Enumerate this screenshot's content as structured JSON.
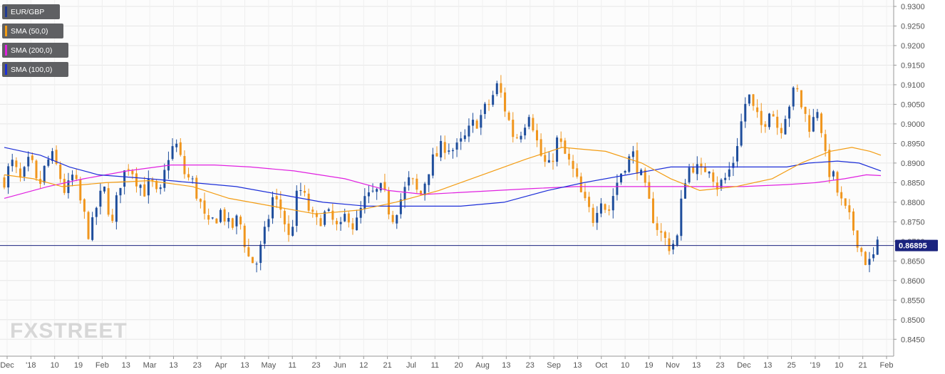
{
  "chart_data": {
    "type": "candlestick",
    "symbol": "EUR/GBP",
    "ylim": [
      0.8425,
      0.93
    ],
    "y_ticks": [
      "0.9300",
      "0.9250",
      "0.9200",
      "0.9150",
      "0.9100",
      "0.9050",
      "0.9000",
      "0.8950",
      "0.8900",
      "0.8850",
      "0.8800",
      "0.8750",
      "0.8700",
      "0.8650",
      "0.8600",
      "0.8550",
      "0.8500",
      "0.8450"
    ],
    "x_labels": [
      "Dec",
      "'18",
      "10",
      "19",
      "Feb",
      "13",
      "Mar",
      "13",
      "23",
      "Apr",
      "13",
      "May",
      "11",
      "23",
      "Jun",
      "12",
      "21",
      "Jul",
      "11",
      "20",
      "Aug",
      "13",
      "23",
      "Sep",
      "13",
      "Oct",
      "10",
      "19",
      "Nov",
      "13",
      "23",
      "Dec",
      "13",
      "25",
      "'19",
      "10",
      "21",
      "Feb"
    ],
    "last_price": 0.86895,
    "last_price_label": "0.86895",
    "legend": [
      {
        "label": "EUR/GBP",
        "color": "#1f3a93"
      },
      {
        "label": "SMA (50,0)",
        "color": "#f39c12"
      },
      {
        "label": "SMA (200,0)",
        "color": "#e020e0"
      },
      {
        "label": "SMA (100,0)",
        "color": "#1c2ed8"
      }
    ],
    "colors": {
      "up": "#1f4e9c",
      "down": "#f0961e",
      "sma50": "#f39c12",
      "sma200": "#e020e0",
      "sma100": "#1c2ed8",
      "price_line": "#1a237e"
    },
    "close_path": [
      [
        0.886,
        0
      ],
      [
        0.89,
        8
      ],
      [
        0.885,
        18
      ],
      [
        0.891,
        28
      ],
      [
        0.883,
        36
      ],
      [
        0.889,
        44
      ],
      [
        0.892,
        50
      ],
      [
        0.888,
        58
      ],
      [
        0.882,
        66
      ],
      [
        0.887,
        74
      ],
      [
        0.878,
        84
      ],
      [
        0.871,
        92
      ],
      [
        0.88,
        100
      ],
      [
        0.883,
        108
      ],
      [
        0.874,
        116
      ],
      [
        0.885,
        124
      ],
      [
        0.89,
        134
      ],
      [
        0.886,
        142
      ],
      [
        0.883,
        150
      ],
      [
        0.885,
        158
      ],
      [
        0.88,
        166
      ],
      [
        0.892,
        176
      ],
      [
        0.895,
        184
      ],
      [
        0.887,
        194
      ],
      [
        0.885,
        202
      ],
      [
        0.88,
        210
      ],
      [
        0.873,
        218
      ],
      [
        0.876,
        226
      ],
      [
        0.878,
        234
      ],
      [
        0.873,
        242
      ],
      [
        0.876,
        252
      ],
      [
        0.866,
        262
      ],
      [
        0.864,
        270
      ],
      [
        0.87,
        278
      ],
      [
        0.881,
        288
      ],
      [
        0.878,
        298
      ],
      [
        0.87,
        306
      ],
      [
        0.884,
        316
      ],
      [
        0.88,
        324
      ],
      [
        0.874,
        334
      ],
      [
        0.877,
        342
      ],
      [
        0.876,
        350
      ],
      [
        0.872,
        360
      ],
      [
        0.878,
        368
      ],
      [
        0.873,
        376
      ],
      [
        0.88,
        386
      ],
      [
        0.882,
        396
      ],
      [
        0.883,
        406
      ],
      [
        0.876,
        416
      ],
      [
        0.881,
        426
      ],
      [
        0.886,
        436
      ],
      [
        0.881,
        446
      ],
      [
        0.889,
        456
      ],
      [
        0.892,
        464
      ],
      [
        0.895,
        474
      ],
      [
        0.893,
        484
      ],
      [
        0.896,
        494
      ],
      [
        0.9,
        504
      ],
      [
        0.902,
        512
      ],
      [
        0.905,
        520
      ],
      [
        0.91,
        530
      ],
      [
        0.902,
        540
      ],
      [
        0.896,
        548
      ],
      [
        0.899,
        556
      ],
      [
        0.904,
        564
      ],
      [
        0.893,
        574
      ],
      [
        0.888,
        584
      ],
      [
        0.896,
        594
      ],
      [
        0.892,
        602
      ],
      [
        0.887,
        612
      ],
      [
        0.88,
        622
      ],
      [
        0.876,
        632
      ],
      [
        0.882,
        640
      ],
      [
        0.877,
        648
      ],
      [
        0.884,
        656
      ],
      [
        0.89,
        666
      ],
      [
        0.892,
        676
      ],
      [
        0.886,
        684
      ],
      [
        0.878,
        694
      ],
      [
        0.872,
        704
      ],
      [
        0.869,
        714
      ],
      [
        0.87,
        722
      ],
      [
        0.886,
        730
      ],
      [
        0.89,
        738
      ],
      [
        0.887,
        748
      ],
      [
        0.89,
        756
      ],
      [
        0.884,
        766
      ],
      [
        0.886,
        774
      ],
      [
        0.89,
        782
      ],
      [
        0.899,
        790
      ],
      [
        0.908,
        798
      ],
      [
        0.902,
        806
      ],
      [
        0.899,
        814
      ],
      [
        0.905,
        822
      ],
      [
        0.898,
        832
      ],
      [
        0.904,
        840
      ],
      [
        0.909,
        850
      ],
      [
        0.903,
        858
      ],
      [
        0.899,
        866
      ],
      [
        0.905,
        874
      ],
      [
        0.89,
        882
      ],
      [
        0.886,
        890
      ],
      [
        0.88,
        898
      ],
      [
        0.876,
        906
      ],
      [
        0.872,
        914
      ],
      [
        0.866,
        922
      ],
      [
        0.864,
        930
      ],
      [
        0.869,
        938
      ]
    ],
    "sma50_path": [
      [
        0.887,
        0
      ],
      [
        0.886,
        40
      ],
      [
        0.884,
        80
      ],
      [
        0.885,
        140
      ],
      [
        0.8855,
        200
      ],
      [
        0.884,
        260
      ],
      [
        0.881,
        310
      ],
      [
        0.879,
        370
      ],
      [
        0.877,
        430
      ],
      [
        0.878,
        490
      ],
      [
        0.88,
        540
      ],
      [
        0.883,
        600
      ],
      [
        0.887,
        660
      ],
      [
        0.891,
        720
      ],
      [
        0.894,
        770
      ],
      [
        0.893,
        830
      ],
      [
        0.89,
        880
      ],
      [
        0.886,
        920
      ],
      [
        0.883,
        960
      ],
      [
        0.884,
        1010
      ],
      [
        0.886,
        1060
      ],
      [
        0.89,
        1100
      ],
      [
        0.893,
        1140
      ],
      [
        0.894,
        1170
      ],
      [
        0.893,
        1195
      ],
      [
        0.892,
        1210
      ]
    ],
    "sma100_path": [
      [
        0.894,
        0
      ],
      [
        0.892,
        50
      ],
      [
        0.889,
        90
      ],
      [
        0.887,
        130
      ],
      [
        0.886,
        200
      ],
      [
        0.885,
        260
      ],
      [
        0.884,
        320
      ],
      [
        0.882,
        380
      ],
      [
        0.88,
        440
      ],
      [
        0.879,
        500
      ],
      [
        0.879,
        560
      ],
      [
        0.879,
        630
      ],
      [
        0.88,
        690
      ],
      [
        0.883,
        750
      ],
      [
        0.885,
        800
      ],
      [
        0.887,
        860
      ],
      [
        0.889,
        920
      ],
      [
        0.889,
        980
      ],
      [
        0.889,
        1040
      ],
      [
        0.889,
        1080
      ],
      [
        0.89,
        1110
      ],
      [
        0.8905,
        1150
      ],
      [
        0.89,
        1180
      ],
      [
        0.888,
        1210
      ]
    ],
    "sma200_path": [
      [
        0.881,
        0
      ],
      [
        0.884,
        60
      ],
      [
        0.886,
        110
      ],
      [
        0.888,
        170
      ],
      [
        0.8895,
        230
      ],
      [
        0.8895,
        290
      ],
      [
        0.889,
        340
      ],
      [
        0.888,
        400
      ],
      [
        0.886,
        470
      ],
      [
        0.883,
        530
      ],
      [
        0.882,
        580
      ],
      [
        0.8825,
        630
      ],
      [
        0.883,
        680
      ],
      [
        0.8835,
        730
      ],
      [
        0.884,
        790
      ],
      [
        0.884,
        850
      ],
      [
        0.884,
        910
      ],
      [
        0.884,
        970
      ],
      [
        0.884,
        1020
      ],
      [
        0.8845,
        1080
      ],
      [
        0.885,
        1120
      ],
      [
        0.886,
        1160
      ],
      [
        0.887,
        1190
      ],
      [
        0.8868,
        1210
      ]
    ]
  },
  "watermark": "FXSTREET"
}
